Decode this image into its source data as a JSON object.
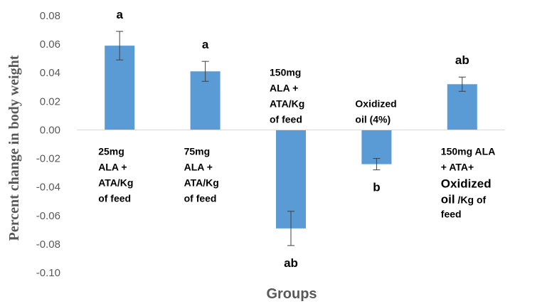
{
  "chart_data": {
    "type": "bar",
    "xlabel": "Groups",
    "ylabel": "Percent change in body weight",
    "ylim": [
      -0.1,
      0.08
    ],
    "yticks": [
      "0.08",
      "0.06",
      "0.04",
      "0.02",
      "0.00",
      "-0.02",
      "-0.04",
      "-0.06",
      "-0.08",
      "-0.10"
    ],
    "ytick_values": [
      0.08,
      0.06,
      0.04,
      0.02,
      0.0,
      -0.02,
      -0.04,
      -0.06,
      -0.08,
      -0.1
    ],
    "bar_color": "#5b9bd5",
    "grid": false,
    "categories": [
      "25mg ALA + ATA/Kg of feed",
      "75mg ALA + ATA/Kg of feed",
      "150mg ALA + ATA/Kg of feed",
      "Oxidized oil (4%)",
      "150mg ALA + ATA+ Oxidized oil /Kg of feed"
    ],
    "category_lines": [
      [
        {
          "t": "25mg"
        },
        {
          "t": "ALA +"
        },
        {
          "t": "ATA/Kg"
        },
        {
          "t": "of feed"
        }
      ],
      [
        {
          "t": "75mg"
        },
        {
          "t": "ALA +"
        },
        {
          "t": "ATA/Kg"
        },
        {
          "t": "of feed"
        }
      ],
      [
        {
          "t": "150mg"
        },
        {
          "t": "ALA +"
        },
        {
          "t": "ATA/Kg"
        },
        {
          "t": "of feed"
        }
      ],
      [
        {
          "t": "Oxidized"
        },
        {
          "t": "oil (4%)"
        }
      ],
      [
        {
          "t": "150mg ALA"
        },
        {
          "t": "+ ATA+"
        },
        {
          "t": "Oxidized",
          "big": true
        },
        {
          "t": "oil",
          "big": true,
          "tail": " /Kg of"
        },
        {
          "t": "feed"
        }
      ]
    ],
    "values": [
      0.059,
      0.041,
      -0.069,
      -0.024,
      0.032
    ],
    "error": [
      0.01,
      0.007,
      0.012,
      0.004,
      0.005
    ],
    "significance": [
      "a",
      "a",
      "ab",
      "b",
      "ab"
    ]
  }
}
